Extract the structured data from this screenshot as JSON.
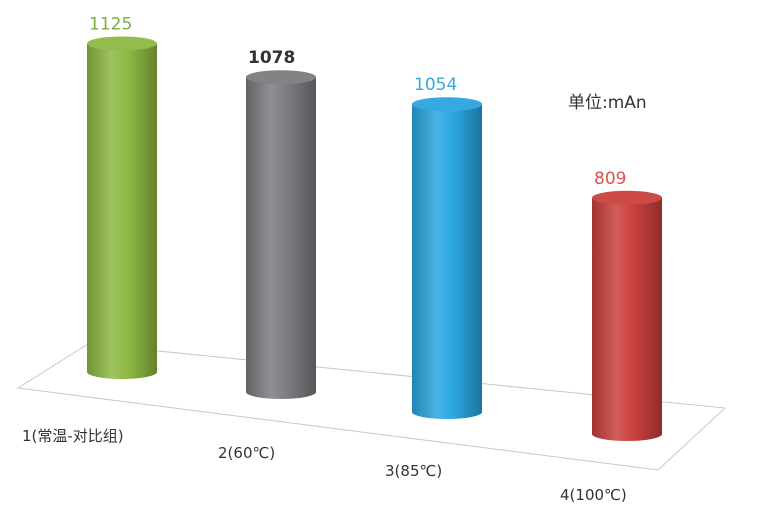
{
  "chart_data": {
    "type": "bar",
    "style": "3d-cylinder",
    "categories": [
      "1(常温-对比组)",
      "2(60℃)",
      "3(85℃)",
      "4(100℃)"
    ],
    "values": [
      1125,
      1078,
      1054,
      809
    ],
    "data_labels": [
      "1125",
      "1078",
      "1054",
      "809"
    ],
    "colors": [
      "#8db843",
      "#7a7c80",
      "#2aa6e0",
      "#c9403d"
    ],
    "label_colors": [
      "#7ab040",
      "#333333",
      "#3aa8dc",
      "#d9534f"
    ],
    "unit_label": "单位:mAn",
    "grid": false,
    "legend": "none"
  }
}
